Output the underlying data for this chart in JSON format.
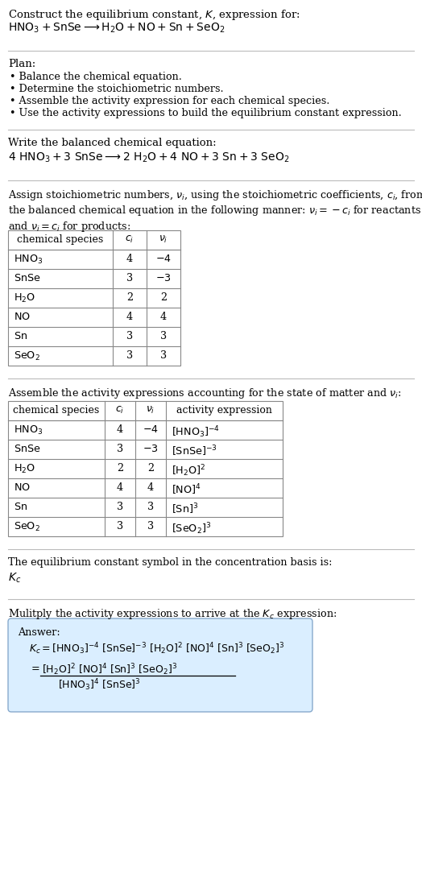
{
  "title_line1": "Construct the equilibrium constant, $K$, expression for:",
  "title_line2": "$\\mathrm{HNO_3 + SnSe \\longrightarrow H_2O + NO + Sn + SeO_2}$",
  "plan_header": "Plan:",
  "plan_items": [
    "• Balance the chemical equation.",
    "• Determine the stoichiometric numbers.",
    "• Assemble the activity expression for each chemical species.",
    "• Use the activity expressions to build the equilibrium constant expression."
  ],
  "balanced_header": "Write the balanced chemical equation:",
  "balanced_eq": "$\\mathrm{4\\ HNO_3 + 3\\ SnSe \\longrightarrow 2\\ H_2O + 4\\ NO + 3\\ Sn + 3\\ SeO_2}$",
  "stoich_header": "Assign stoichiometric numbers, $\\nu_i$, using the stoichiometric coefficients, $c_i$, from\nthe balanced chemical equation in the following manner: $\\nu_i = -c_i$ for reactants\nand $\\nu_i = c_i$ for products:",
  "table1_cols": [
    "chemical species",
    "$c_i$",
    "$\\nu_i$"
  ],
  "table1_rows": [
    [
      "$\\mathrm{HNO_3}$",
      "4",
      "$-4$"
    ],
    [
      "$\\mathrm{SnSe}$",
      "3",
      "$-3$"
    ],
    [
      "$\\mathrm{H_2O}$",
      "2",
      "2"
    ],
    [
      "$\\mathrm{NO}$",
      "4",
      "4"
    ],
    [
      "$\\mathrm{Sn}$",
      "3",
      "3"
    ],
    [
      "$\\mathrm{SeO_2}$",
      "3",
      "3"
    ]
  ],
  "activity_header": "Assemble the activity expressions accounting for the state of matter and $\\nu_i$:",
  "table2_cols": [
    "chemical species",
    "$c_i$",
    "$\\nu_i$",
    "activity expression"
  ],
  "table2_rows": [
    [
      "$\\mathrm{HNO_3}$",
      "4",
      "$-4$",
      "$[\\mathrm{HNO_3}]^{-4}$"
    ],
    [
      "$\\mathrm{SnSe}$",
      "3",
      "$-3$",
      "$[\\mathrm{SnSe}]^{-3}$"
    ],
    [
      "$\\mathrm{H_2O}$",
      "2",
      "2",
      "$[\\mathrm{H_2O}]^{2}$"
    ],
    [
      "$\\mathrm{NO}$",
      "4",
      "4",
      "$[\\mathrm{NO}]^{4}$"
    ],
    [
      "$\\mathrm{Sn}$",
      "3",
      "3",
      "$[\\mathrm{Sn}]^{3}$"
    ],
    [
      "$\\mathrm{SeO_2}$",
      "3",
      "3",
      "$[\\mathrm{SeO_2}]^{3}$"
    ]
  ],
  "kc_header": "The equilibrium constant symbol in the concentration basis is:",
  "kc_symbol": "$K_c$",
  "multiply_header": "Mulitply the activity expressions to arrive at the $K_c$ expression:",
  "answer_label": "Answer:",
  "answer_line1": "$K_c = [\\mathrm{HNO_3}]^{-4}\\ [\\mathrm{SnSe}]^{-3}\\ [\\mathrm{H_2O}]^{2}\\ [\\mathrm{NO}]^{4}\\ [\\mathrm{Sn}]^{3}\\ [\\mathrm{SeO_2}]^{3}$",
  "answer_eq_lhs": "$= $",
  "answer_numer": "$[\\mathrm{H_2O}]^{2}\\ [\\mathrm{NO}]^{4}\\ [\\mathrm{Sn}]^{3}\\ [\\mathrm{SeO_2}]^{3}$",
  "answer_denom": "$[\\mathrm{HNO_3}]^{4}\\ [\\mathrm{SnSe}]^{3}$",
  "bg_color": "#ffffff",
  "text_color": "#000000",
  "table_border_color": "#888888",
  "answer_box_facecolor": "#daeeff",
  "answer_box_edgecolor": "#88aacc",
  "divider_color": "#bbbbbb",
  "base_fontsize": 9.5
}
